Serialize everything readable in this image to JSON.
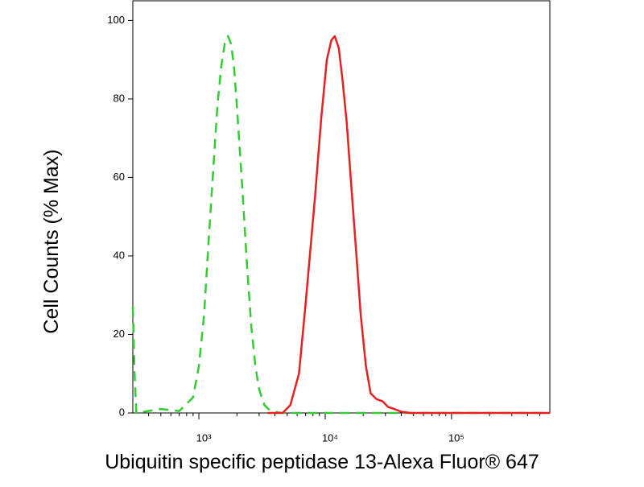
{
  "chart_data": {
    "type": "line",
    "x_label": "Ubiquitin specific peptidase 13-Alexa Fluor® 647",
    "y_label": "Cell Counts (% Max)",
    "xscale": "log",
    "xlim": [
      300,
      600000
    ],
    "ylim": [
      0,
      105
    ],
    "xticks": [
      {
        "value": 1000,
        "label": "10³"
      },
      {
        "value": 10000,
        "label": "10⁴"
      },
      {
        "value": 100000,
        "label": "10⁵"
      }
    ],
    "xminorticks": [
      400,
      500,
      600,
      700,
      800,
      900,
      2000,
      3000,
      4000,
      5000,
      6000,
      7000,
      8000,
      9000,
      20000,
      30000,
      40000,
      50000,
      60000,
      70000,
      80000,
      90000,
      200000,
      300000,
      400000,
      500000
    ],
    "yticks": [
      0,
      20,
      40,
      60,
      80,
      100
    ],
    "series": [
      {
        "color": "#33cc33",
        "dash": true,
        "x": [
          300,
          310,
          320,
          500,
          700,
          900,
          1000,
          1100,
          1200,
          1300,
          1400,
          1500,
          1600,
          1700,
          1800,
          1900,
          2000,
          2200,
          2400,
          2600,
          2800,
          3000,
          3300,
          3700,
          4500,
          600000
        ],
        "values": [
          27,
          10,
          0,
          1,
          0.5,
          4,
          12,
          25,
          45,
          62,
          78,
          88,
          94,
          96,
          94,
          88,
          78,
          58,
          38,
          22,
          12,
          6,
          2,
          0.5,
          0,
          0
        ]
      },
      {
        "color": "#e82020",
        "dash": false,
        "x": [
          3500,
          4600,
          5300,
          6200,
          7000,
          8300,
          9300,
          10300,
          11200,
          11900,
          12800,
          13700,
          14800,
          15900,
          17500,
          19100,
          21000,
          22900,
          25500,
          28400,
          31500,
          35300,
          40000,
          47000,
          600000
        ],
        "values": [
          0,
          0,
          2,
          10,
          28,
          55,
          75,
          90,
          95,
          96,
          93,
          85,
          74,
          60,
          42,
          25,
          12,
          5,
          3.5,
          3,
          1.5,
          1,
          0.3,
          0,
          0
        ]
      }
    ]
  }
}
